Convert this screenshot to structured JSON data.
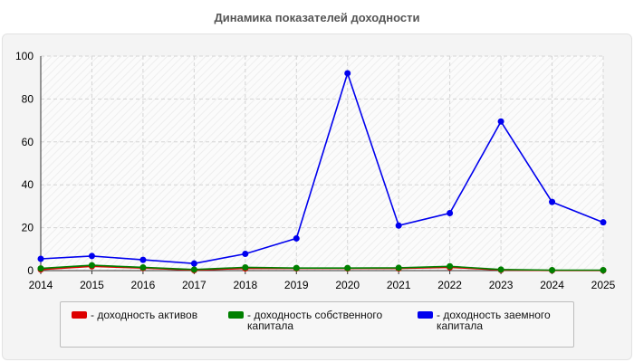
{
  "chart_data": {
    "type": "line",
    "title": "Динамика показателей доходности",
    "x": [
      "2014",
      "2015",
      "2016",
      "2017",
      "2018",
      "2019",
      "2020",
      "2021",
      "2022",
      "2023",
      "2024",
      "2025"
    ],
    "ylim": [
      0,
      100
    ],
    "yticks": [
      0,
      20,
      40,
      60,
      80,
      100
    ],
    "grid": true,
    "legend_position": "bottom",
    "series": [
      {
        "name": "- доходность активов",
        "color": "#dd0000",
        "values": [
          0.5,
          2,
          1.2,
          0.2,
          1,
          1,
          1,
          1,
          1.5,
          0.3,
          0.1,
          0.1
        ]
      },
      {
        "name": "- доходность собственного капитала",
        "color": "#008000",
        "values": [
          1,
          2.5,
          1.5,
          0.5,
          1.5,
          1.2,
          1.2,
          1.3,
          2,
          0.5,
          0.2,
          0.2
        ]
      },
      {
        "name": "- доходность заемного капитала",
        "color": "#0000ee",
        "values": [
          5.5,
          6.8,
          5,
          3.3,
          7.8,
          15,
          92,
          21,
          26.8,
          69.5,
          32,
          22.5
        ]
      }
    ]
  }
}
